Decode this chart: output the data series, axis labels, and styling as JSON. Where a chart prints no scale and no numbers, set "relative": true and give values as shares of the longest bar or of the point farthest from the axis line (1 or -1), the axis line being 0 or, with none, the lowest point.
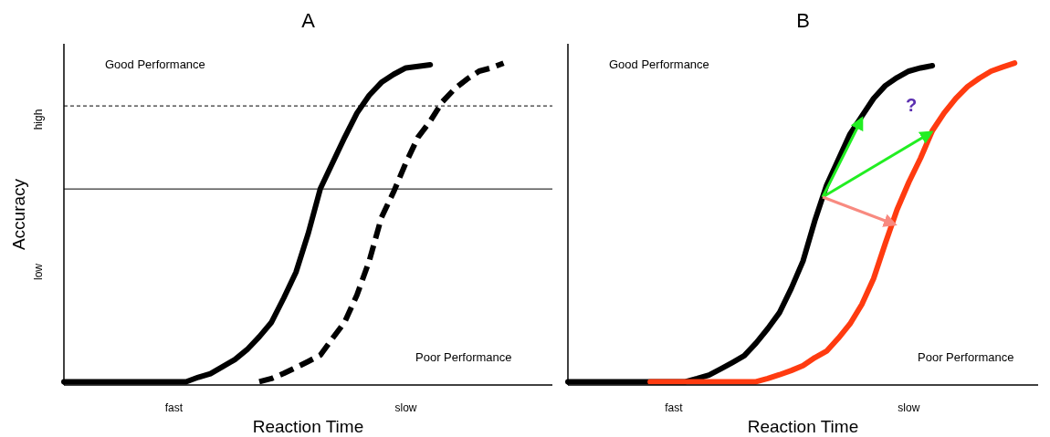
{
  "chart_data": [
    {
      "type": "line",
      "title": "A",
      "xlabel": "Reaction Time",
      "ylabel": "Accuracy",
      "relative": true,
      "categories": [
        null,
        null,
        null,
        null,
        null,
        null,
        null,
        null,
        null,
        "fast",
        null,
        null,
        null,
        null,
        null,
        null,
        null,
        null,
        null,
        null,
        null,
        null,
        null,
        null,
        null,
        null,
        null,
        null,
        "slow",
        null,
        null,
        null,
        null,
        null,
        null,
        null,
        null,
        null,
        null,
        null,
        null
      ],
      "series": [
        {
          "color": "#000000",
          "line_style": "solid",
          "values": [
            0.01,
            0.01,
            0.01,
            0.01,
            0.01,
            0.01,
            0.01,
            0.01,
            0.01,
            0.01,
            0.01,
            0.024,
            0.035,
            0.057,
            0.079,
            0.11,
            0.15,
            0.195,
            0.27,
            0.35,
            0.47,
            0.61,
            0.69,
            0.77,
            0.845,
            0.9,
            0.94,
            0.965,
            0.985,
            0.99,
            0.995,
            null,
            null,
            null,
            null,
            null,
            null,
            null,
            null,
            null,
            null
          ]
        },
        {
          "color": "#000000",
          "line_style": "dashed",
          "values": [
            null,
            null,
            null,
            null,
            null,
            null,
            null,
            null,
            null,
            null,
            null,
            null,
            null,
            null,
            null,
            null,
            0.01,
            0.02,
            0.036,
            0.054,
            0.073,
            0.093,
            0.145,
            0.196,
            0.28,
            0.385,
            0.52,
            0.6,
            0.69,
            0.77,
            0.82,
            0.88,
            0.92,
            0.95,
            0.975,
            0.985,
            1,
            null,
            null,
            null,
            null
          ]
        }
      ],
      "ref_lines": [
        {
          "axis": "y",
          "value": 0.867,
          "line_style": "dashed",
          "color": "#000000"
        },
        {
          "axis": "y",
          "value": 0.609,
          "line_style": "solid",
          "color": "#000000"
        }
      ],
      "annotations": [
        "Good Performance",
        "Poor Performance",
        "high",
        "low"
      ],
      "marker": "none"
    },
    {
      "type": "line",
      "title": "B",
      "xlabel": "Reaction Time",
      "relative": true,
      "categories": [
        null,
        null,
        null,
        null,
        null,
        null,
        null,
        null,
        null,
        "fast",
        null,
        null,
        null,
        null,
        null,
        null,
        null,
        null,
        null,
        null,
        null,
        null,
        null,
        null,
        null,
        null,
        null,
        null,
        null,
        "slow",
        null,
        null,
        null,
        null,
        null,
        null,
        null,
        null,
        null,
        null,
        null
      ],
      "series": [
        {
          "color": "#000000",
          "line_style": "solid",
          "values": [
            0.01,
            0.01,
            0.01,
            0.01,
            0.01,
            0.01,
            0.01,
            0.01,
            0.01,
            0.01,
            0.01,
            0.02,
            0.031,
            0.05,
            0.07,
            0.091,
            0.13,
            0.175,
            0.225,
            0.3,
            0.385,
            0.51,
            0.62,
            0.7,
            0.78,
            0.835,
            0.89,
            0.93,
            0.955,
            0.975,
            0.985,
            0.992,
            null,
            null,
            null,
            null,
            null,
            null,
            null,
            null,
            null
          ]
        },
        {
          "color": "#ff3b10",
          "line_style": "solid",
          "values": [
            null,
            null,
            null,
            null,
            null,
            null,
            null,
            0.01,
            0.01,
            0.01,
            0.01,
            0.01,
            0.01,
            0.01,
            0.01,
            0.01,
            0.01,
            0.02,
            0.032,
            0.045,
            0.06,
            0.085,
            0.105,
            0.145,
            0.19,
            0.25,
            0.33,
            0.44,
            0.545,
            0.63,
            0.705,
            0.79,
            0.845,
            0.89,
            0.927,
            0.953,
            0.975,
            0.988,
            1,
            null,
            null
          ]
        }
      ],
      "annotations": [
        "Good Performance",
        "Poor Performance",
        "?"
      ],
      "marker": "none"
    }
  ]
}
